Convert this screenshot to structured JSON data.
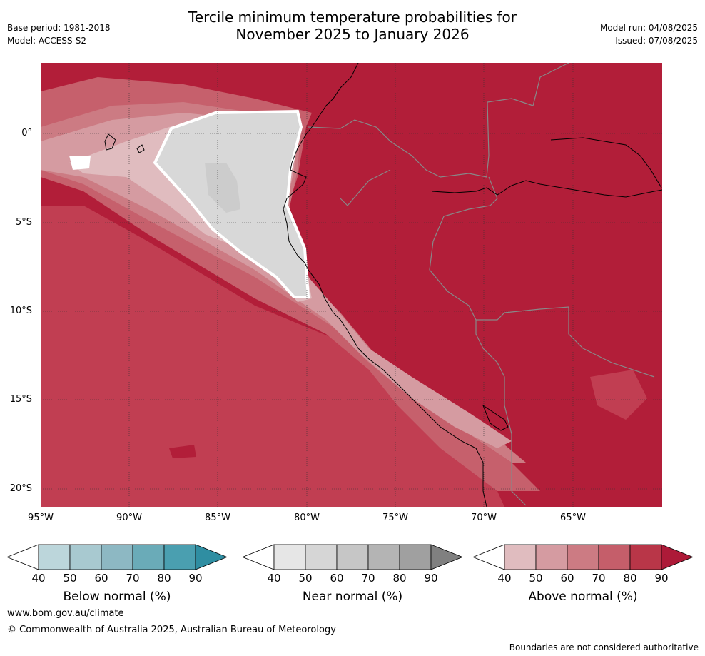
{
  "header": {
    "title_line1": "Tercile minimum temperature probabilities for",
    "title_line2": "November 2025 to January 2026",
    "base_period": "Base period: 1981-2018",
    "model": "Model: ACCESS-S2",
    "model_run": "Model run: 04/08/2025",
    "issued": "Issued: 07/08/2025"
  },
  "map": {
    "lat_labels": [
      "0°",
      "5°S",
      "10°S",
      "15°S",
      "20°S"
    ],
    "lon_labels": [
      "95°W",
      "90°W",
      "85°W",
      "80°W",
      "75°W",
      "70°W",
      "65°W"
    ],
    "dominant_category": "Above normal",
    "colors": {
      "above_90": "#b21e39",
      "above_80": "#c13e52",
      "above_70": "#c6606c",
      "above_60": "#cc7b83",
      "above_50": "#d59ba1",
      "above_40": "#e0bcbf",
      "near_40": "#d8d8d8",
      "near_50": "#cccccc",
      "coast": "#000000",
      "border": "#888888",
      "grid": "#333333"
    }
  },
  "colorbars": [
    {
      "title": "Below normal (%)",
      "ticks": [
        "40",
        "50",
        "60",
        "70",
        "80",
        "90"
      ],
      "colors": [
        "#ffffff",
        "#bcd6db",
        "#a8c9d0",
        "#8db8c3",
        "#6aabb8",
        "#4a9fb0",
        "#2f8ea2"
      ]
    },
    {
      "title": "Near normal (%)",
      "ticks": [
        "40",
        "50",
        "60",
        "70",
        "80",
        "90"
      ],
      "colors": [
        "#ffffff",
        "#e6e6e6",
        "#d6d6d6",
        "#c6c6c6",
        "#b4b4b4",
        "#a0a0a0",
        "#808080"
      ]
    },
    {
      "title": "Above normal (%)",
      "ticks": [
        "40",
        "50",
        "60",
        "70",
        "80",
        "90"
      ],
      "colors": [
        "#ffffff",
        "#e0bcbf",
        "#d59ba1",
        "#cc7b83",
        "#c55e6a",
        "#b93648",
        "#ad1a38"
      ]
    }
  ],
  "footer": {
    "url": "www.bom.gov.au/climate",
    "copyright": "© Commonwealth of Australia 2025, Australian Bureau of Meteorology",
    "disclaimer": "Boundaries are not considered authoritative"
  }
}
